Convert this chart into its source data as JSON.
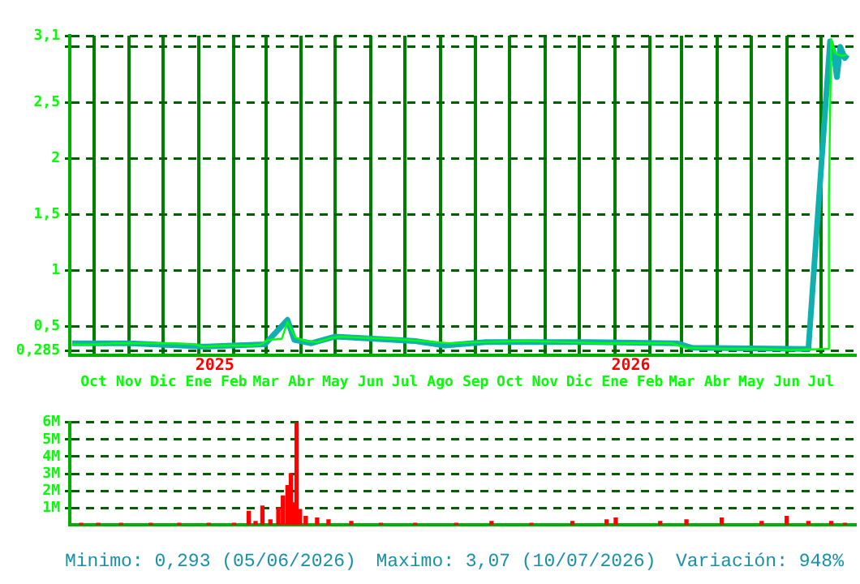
{
  "chart_data": [
    {
      "type": "line",
      "grid": true,
      "legend": false,
      "marker": "none",
      "line_style": "solid",
      "xlim": [
        "2024-09-10",
        "2026-07-31"
      ],
      "xticks": [
        {
          "value": "2024-10-01",
          "label": "Oct"
        },
        {
          "value": "2024-11-01",
          "label": "Nov"
        },
        {
          "value": "2024-12-01",
          "label": "Dic"
        },
        {
          "value": "2025-01-01",
          "label": "Ene"
        },
        {
          "value": "2025-02-01",
          "label": "Feb"
        },
        {
          "value": "2025-03-01",
          "label": "Mar"
        },
        {
          "value": "2025-04-01",
          "label": "Abr"
        },
        {
          "value": "2025-05-01",
          "label": "May"
        },
        {
          "value": "2025-06-01",
          "label": "Jun"
        },
        {
          "value": "2025-07-01",
          "label": "Jul"
        },
        {
          "value": "2025-08-01",
          "label": "Ago"
        },
        {
          "value": "2025-09-01",
          "label": "Sep"
        },
        {
          "value": "2025-10-01",
          "label": "Oct"
        },
        {
          "value": "2025-11-01",
          "label": "Nov"
        },
        {
          "value": "2025-12-01",
          "label": "Dic"
        },
        {
          "value": "2026-01-01",
          "label": "Ene"
        },
        {
          "value": "2026-02-01",
          "label": "Feb"
        },
        {
          "value": "2026-03-01",
          "label": "Mar"
        },
        {
          "value": "2026-04-01",
          "label": "Abr"
        },
        {
          "value": "2026-05-01",
          "label": "May"
        },
        {
          "value": "2026-06-01",
          "label": "Jun"
        },
        {
          "value": "2026-07-01",
          "label": "Jul"
        }
      ],
      "ylim": [
        0.24,
        3.1
      ],
      "yticks": [
        {
          "value": 0.285,
          "label": "0,285"
        },
        {
          "value": 0.5,
          "label": "0,5"
        },
        1,
        {
          "value": 1.5,
          "label": "1,5"
        },
        2,
        {
          "value": 2.5,
          "label": "2,5"
        },
        {
          "value": 3,
          "label": null
        },
        {
          "value": 3.1,
          "label": "3,1"
        }
      ],
      "annotations": [
        "2025",
        "2026"
      ],
      "series": [
        {
          "color": "#10b0b0",
          "x": [
            "2024-09-12",
            "2024-11-01",
            "2025-01-05",
            "2025-02-28",
            "2025-03-20",
            "2025-03-26",
            "2025-04-10",
            "2025-05-01",
            "2025-07-10",
            "2025-08-05",
            "2025-09-10",
            "2025-12-10",
            "2026-02-25",
            "2026-03-10",
            "2026-06-20",
            "2026-07-09",
            "2026-07-12",
            "2026-07-15",
            "2026-07-18",
            "2026-07-22",
            "2026-07-24"
          ],
          "values": [
            0.35,
            0.35,
            0.32,
            0.34,
            0.56,
            0.38,
            0.35,
            0.41,
            0.37,
            0.33,
            0.36,
            0.36,
            0.35,
            0.31,
            0.3,
            3.05,
            2.96,
            2.73,
            3.0,
            2.9,
            2.93
          ]
        },
        {
          "color": "#00ff00",
          "x": [
            "2024-09-12",
            "2024-10-01",
            "2024-10-20",
            "2024-11-15",
            "2024-12-10",
            "2024-12-28",
            "2025-01-05",
            "2025-01-25",
            "2025-02-15",
            "2025-02-25",
            "2025-03-03",
            "2025-03-15",
            "2025-03-20",
            "2025-03-27",
            "2025-04-05",
            "2025-04-15",
            "2025-04-28",
            "2025-05-05",
            "2025-05-25",
            "2025-06-20",
            "2025-07-15",
            "2025-08-10",
            "2025-09-05",
            "2025-10-15",
            "2025-11-20",
            "2025-12-20",
            "2026-01-20",
            "2026-02-20",
            "2026-03-05",
            "2026-04-10",
            "2026-05-10",
            "2026-06-05",
            "2026-07-07",
            "2026-07-08",
            "2026-07-10",
            "2026-07-13",
            "2026-07-16",
            "2026-07-20",
            "2026-07-24"
          ],
          "values": [
            0.34,
            0.34,
            0.35,
            0.35,
            0.35,
            0.34,
            0.32,
            0.33,
            0.33,
            0.34,
            0.38,
            0.39,
            0.54,
            0.4,
            0.37,
            0.36,
            0.4,
            0.41,
            0.4,
            0.39,
            0.37,
            0.35,
            0.36,
            0.37,
            0.36,
            0.35,
            0.35,
            0.35,
            0.31,
            0.3,
            0.3,
            0.29,
            0.3,
            1.67,
            3.07,
            2.95,
            2.93,
            2.92,
            2.93
          ]
        }
      ]
    },
    {
      "type": "bar",
      "grid": true,
      "legend": false,
      "tick_labels": "y",
      "xlim": [
        "2024-09-10",
        "2026-07-31"
      ],
      "xticks": [
        {
          "value": "2024-10-01",
          "label": null
        },
        {
          "value": "2024-11-01",
          "label": null
        },
        {
          "value": "2024-12-01",
          "label": null
        },
        {
          "value": "2025-01-01",
          "label": null
        },
        {
          "value": "2025-02-01",
          "label": null
        },
        {
          "value": "2025-03-01",
          "label": null
        },
        {
          "value": "2025-04-01",
          "label": null
        },
        {
          "value": "2025-05-01",
          "label": null
        },
        {
          "value": "2025-06-01",
          "label": null
        },
        {
          "value": "2025-07-01",
          "label": null
        },
        {
          "value": "2025-08-01",
          "label": null
        },
        {
          "value": "2025-09-01",
          "label": null
        },
        {
          "value": "2025-10-01",
          "label": null
        },
        {
          "value": "2025-11-01",
          "label": null
        },
        {
          "value": "2025-12-01",
          "label": null
        },
        {
          "value": "2026-01-01",
          "label": null
        },
        {
          "value": "2026-02-01",
          "label": null
        },
        {
          "value": "2026-03-01",
          "label": null
        },
        {
          "value": "2026-04-01",
          "label": null
        },
        {
          "value": "2026-05-01",
          "label": null
        },
        {
          "value": "2026-06-01",
          "label": null
        },
        {
          "value": "2026-07-01",
          "label": null
        }
      ],
      "ylim": [
        0,
        6
      ],
      "yticks": [
        {
          "value": 1,
          "label": "1M"
        },
        {
          "value": 2,
          "label": "2M"
        },
        {
          "value": 3,
          "label": "3M"
        },
        {
          "value": 4,
          "label": "4M"
        },
        {
          "value": 5,
          "label": "5M"
        },
        {
          "value": 6,
          "label": "6M"
        }
      ],
      "annotations": [
        "Minimo: 0,293 (05/06/2026)",
        "Maximo: 3,07 (10/07/2026)",
        "Variación: 948%"
      ],
      "series": [
        {
          "color": "#ff0000",
          "x": [
            "2024-09-20",
            "2024-10-05",
            "2024-10-25",
            "2024-11-20",
            "2024-12-15",
            "2025-01-10",
            "2025-02-01",
            "2025-02-14",
            "2025-02-20",
            "2025-02-26",
            "2025-03-05",
            "2025-03-12",
            "2025-03-16",
            "2025-03-20",
            "2025-03-23",
            "2025-03-25",
            "2025-03-28",
            "2025-03-31",
            "2025-04-05",
            "2025-04-15",
            "2025-04-25",
            "2025-05-15",
            "2025-06-10",
            "2025-07-10",
            "2025-08-15",
            "2025-09-15",
            "2025-10-20",
            "2025-11-25",
            "2025-12-25",
            "2026-01-02",
            "2026-02-10",
            "2026-03-05",
            "2026-04-05",
            "2026-05-10",
            "2026-06-01",
            "2026-06-20",
            "2026-07-10",
            "2026-07-22"
          ],
          "values": [
            0.1,
            0.1,
            0.1,
            0.1,
            0.1,
            0.1,
            0.1,
            0.8,
            0.2,
            1.1,
            0.3,
            1.0,
            1.7,
            2.3,
            3.0,
            1.3,
            6.0,
            0.9,
            0.5,
            0.4,
            0.3,
            0.2,
            0.1,
            0.1,
            0.1,
            0.2,
            0.1,
            0.2,
            0.3,
            0.4,
            0.2,
            0.3,
            0.4,
            0.2,
            0.5,
            0.2,
            0.2,
            0.1
          ]
        }
      ]
    }
  ]
}
